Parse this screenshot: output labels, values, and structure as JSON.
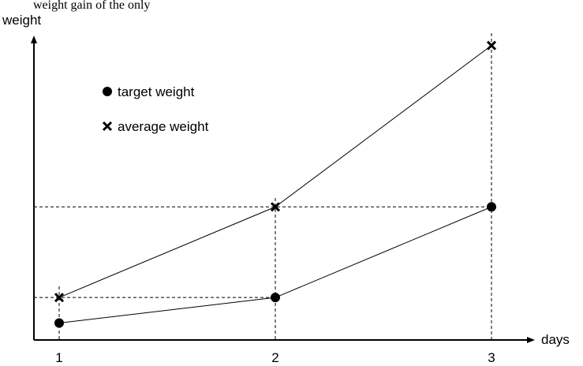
{
  "top_text_fragment": "weight gain of the only",
  "chart_data": {
    "type": "line",
    "xlabel": "days",
    "ylabel": "weight",
    "x": [
      1,
      2,
      3
    ],
    "x_tick_labels": [
      "1",
      "2",
      "3"
    ],
    "xlim": [
      0.88,
      3.18
    ],
    "ylim": [
      0,
      10
    ],
    "grid": false,
    "reference_lines": "dashed",
    "legend_position": "top-left",
    "series": [
      {
        "name": "target weight",
        "marker": "circle",
        "values": [
          0.6,
          1.5,
          4.7
        ]
      },
      {
        "name": "average weight",
        "marker": "cross",
        "values": [
          1.5,
          4.7,
          10.4
        ]
      }
    ]
  }
}
